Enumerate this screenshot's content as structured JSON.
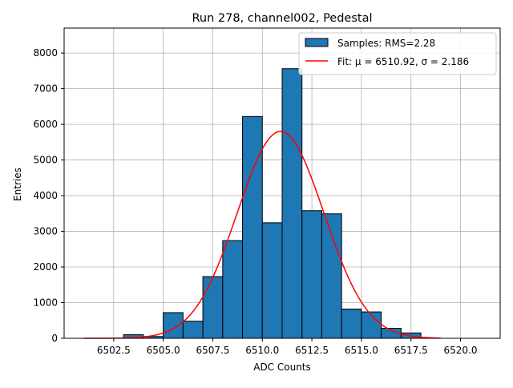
{
  "chart_data": {
    "type": "bar",
    "title": "Run 278, channel002, Pedestal",
    "xlabel": "ADC Counts",
    "ylabel": "Entries",
    "xlim": [
      6500.0,
      6522.0
    ],
    "ylim": [
      0,
      8700
    ],
    "xticks": [
      6502.5,
      6505.0,
      6507.5,
      6510.0,
      6512.5,
      6515.0,
      6517.5,
      6520.0
    ],
    "xtick_labels": [
      "6502.5",
      "6505.0",
      "6507.5",
      "6510.0",
      "6512.5",
      "6515.0",
      "6517.5",
      "6520.0"
    ],
    "yticks": [
      0,
      1000,
      2000,
      3000,
      4000,
      5000,
      6000,
      7000,
      8000
    ],
    "ytick_labels": [
      "0",
      "1000",
      "2000",
      "3000",
      "4000",
      "5000",
      "6000",
      "7000",
      "8000"
    ],
    "grid": true,
    "legend_position": "top-right",
    "series": [
      {
        "name": "Samples: RMS=2.28",
        "kind": "histogram",
        "color": "#1f77b4",
        "edgecolor": "#000000",
        "bin_edges": [
          6502,
          6503,
          6504,
          6505,
          6506,
          6507,
          6508,
          6509,
          6510,
          6511,
          6512,
          6513,
          6514,
          6515,
          6516,
          6517,
          6518
        ],
        "counts": [
          0,
          100,
          50,
          720,
          480,
          1730,
          2740,
          6220,
          3240,
          7560,
          3580,
          3490,
          820,
          740,
          280,
          150
        ]
      },
      {
        "name": "Fit: μ = 6510.92, σ = 2.186",
        "kind": "gaussian",
        "color": "#ff0000",
        "mu": 6510.92,
        "sigma": 2.186,
        "amplitude": 5800,
        "x_range": [
          6501,
          6519
        ]
      }
    ]
  }
}
